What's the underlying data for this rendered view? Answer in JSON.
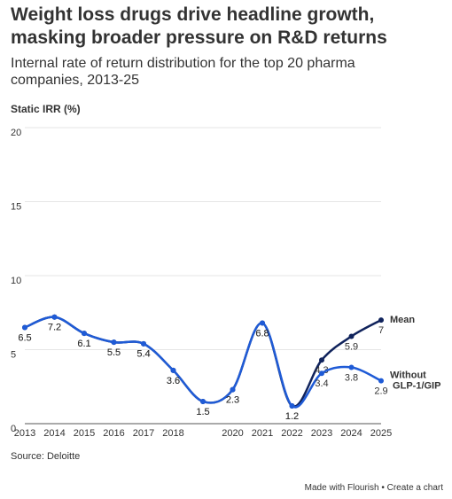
{
  "title": "Weight loss drugs drive headline growth, masking broader pressure on R&D returns",
  "subtitle": "Internal rate of return distribution for the top 20 pharma companies, 2013-25",
  "source": "Source: Deloitte",
  "footer": "Made with Flourish • Create a chart",
  "chart_data": {
    "type": "line",
    "y_label": "Static IRR (%)",
    "categories": [
      "2013",
      "2014",
      "2015",
      "2016",
      "2017",
      "2018",
      null,
      "2020",
      "2021",
      "2022",
      "2023",
      "2024",
      "2025"
    ],
    "series": [
      {
        "name": "Mean",
        "color": "#10235c",
        "values": [
          6.5,
          7.2,
          6.1,
          5.5,
          5.4,
          3.6,
          1.5,
          2.3,
          6.8,
          1.2,
          4.3,
          5.9,
          7
        ]
      },
      {
        "name": "Without GLP-1/GIP",
        "color": "#1f5bd6",
        "values": [
          6.5,
          7.2,
          6.1,
          5.5,
          5.4,
          3.6,
          1.5,
          2.3,
          6.8,
          1.2,
          3.4,
          3.8,
          2.9
        ]
      }
    ],
    "ylim": [
      0,
      20
    ],
    "yticks": [
      0,
      5,
      10,
      15,
      20
    ],
    "grid": true
  }
}
